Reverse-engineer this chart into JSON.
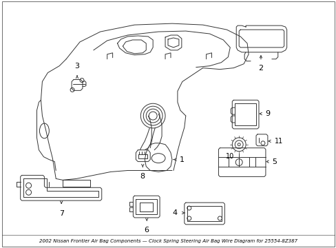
{
  "title": "2002 Nissan Frontier Air Bag Components\nClock Spring Steering Air Bag Wire Diagram for 25554-8Z387",
  "background_color": "#ffffff",
  "line_color": "#333333",
  "label_color": "#000000",
  "figsize": [
    4.89,
    3.6
  ],
  "dpi": 100,
  "border_color": "#cccccc"
}
